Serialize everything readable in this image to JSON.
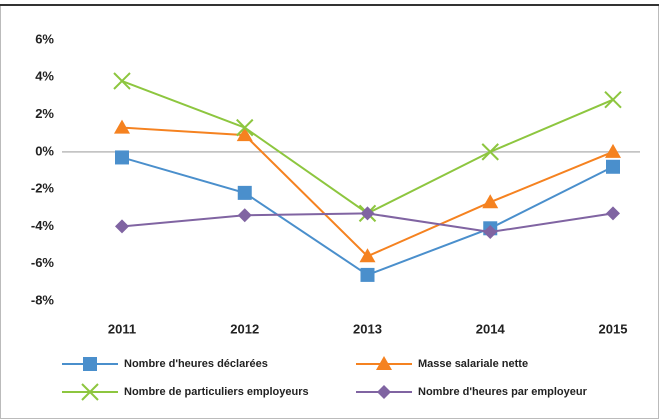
{
  "chart_data": {
    "type": "line",
    "categories": [
      "2011",
      "2012",
      "2013",
      "2014",
      "2015"
    ],
    "series": [
      {
        "name": "Nombre d'heures déclarées",
        "color": "#4a8fcc",
        "marker": "square",
        "values": [
          -0.3,
          -2.2,
          -6.6,
          -4.1,
          -0.8
        ]
      },
      {
        "name": "Masse salariale nette",
        "color": "#f58220",
        "marker": "triangle",
        "values": [
          1.3,
          0.9,
          -5.6,
          -2.7,
          0.0
        ]
      },
      {
        "name": "Nombre de particuliers employeurs",
        "color": "#8dc63f",
        "marker": "x",
        "values": [
          3.8,
          1.3,
          -3.3,
          0.0,
          2.8
        ]
      },
      {
        "name": "Nombre d'heures par employeur",
        "color": "#8064a2",
        "marker": "diamond",
        "values": [
          -4.0,
          -3.4,
          -3.3,
          -4.3,
          -3.3
        ]
      }
    ],
    "ylim": [
      -8,
      6
    ],
    "yticks": [
      {
        "value": 6,
        "label": "6%"
      },
      {
        "value": 4,
        "label": "4%"
      },
      {
        "value": 2,
        "label": "2%"
      },
      {
        "value": 0,
        "label": "0%"
      },
      {
        "value": -2,
        "label": "-2%"
      },
      {
        "value": -4,
        "label": "-4%"
      },
      {
        "value": -6,
        "label": "-6%"
      },
      {
        "value": -8,
        "label": "-8%"
      }
    ],
    "zero_line": true,
    "legend": "bottom"
  }
}
